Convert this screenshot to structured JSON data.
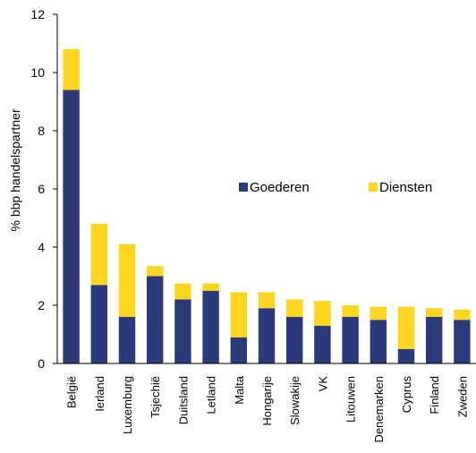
{
  "chart_data": {
    "type": "bar",
    "stacked": true,
    "title": "",
    "xlabel": "",
    "ylabel": "% bbp handelspartner",
    "ylim": [
      0,
      12
    ],
    "yticks": [
      0,
      2,
      4,
      6,
      8,
      10,
      12
    ],
    "grid": false,
    "legend_position": "center-right",
    "categories": [
      "België",
      "Ierland",
      "Luxemburg",
      "Tsjechië",
      "Duitsland",
      "Letland",
      "Malta",
      "Hongarije",
      "Slowakije",
      "VK",
      "Litouwen",
      "Denemarken",
      "Cyprus",
      "Finland",
      "Zweden"
    ],
    "series": [
      {
        "name": "Goederen",
        "color": "#2B3A7A",
        "values": [
          9.4,
          2.7,
          1.6,
          3.0,
          2.2,
          2.5,
          0.9,
          1.9,
          1.6,
          1.3,
          1.6,
          1.5,
          0.5,
          1.6,
          1.5
        ]
      },
      {
        "name": "Diensten",
        "color": "#FFD51F",
        "values": [
          1.4,
          2.1,
          2.5,
          0.35,
          0.55,
          0.25,
          1.55,
          0.55,
          0.6,
          0.85,
          0.4,
          0.45,
          1.45,
          0.3,
          0.35
        ]
      }
    ]
  }
}
